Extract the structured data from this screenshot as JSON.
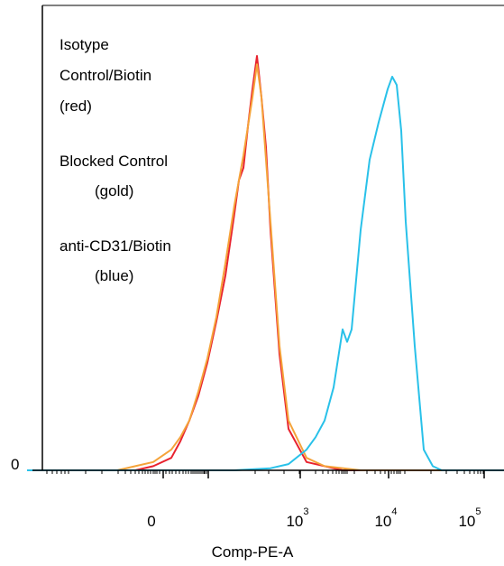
{
  "chart_data": {
    "type": "line",
    "chart_kind": "flow cytometry histogram overlay",
    "xlabel": "Comp-PE-A",
    "ylabel": "",
    "x_scale": "biexponential (logicle)",
    "x_tick_labels": [
      {
        "base": "0",
        "exp": ""
      },
      {
        "base": "10",
        "exp": "3"
      },
      {
        "base": "10",
        "exp": "4"
      },
      {
        "base": "10",
        "exp": "5"
      }
    ],
    "y_tick_labels": [
      "0"
    ],
    "ylim": [
      0,
      1
    ],
    "grid": false,
    "legend_placement": "top-left",
    "legend": [
      {
        "lines": [
          "Isotype",
          "Control/Biotin",
          "(red)"
        ]
      },
      {
        "lines": [
          "Blocked Control",
          "(gold)"
        ]
      },
      {
        "lines": [
          "anti-CD31/Biotin",
          "(blue)"
        ]
      }
    ],
    "series": [
      {
        "color": "#e8232f",
        "x": [
          30,
          70,
          110,
          150,
          170,
          190,
          200,
          210,
          220,
          230,
          240,
          250,
          260,
          265,
          270,
          275,
          280,
          285,
          290,
          295,
          300,
          310,
          320,
          340,
          380,
          560
        ],
        "y": [
          0,
          0,
          0,
          0,
          0.01,
          0.03,
          0.07,
          0.12,
          0.18,
          0.26,
          0.36,
          0.47,
          0.62,
          0.7,
          0.73,
          0.83,
          0.92,
          1.0,
          0.9,
          0.78,
          0.58,
          0.28,
          0.1,
          0.02,
          0.0,
          0
        ]
      },
      {
        "color": "#f5a33a",
        "x": [
          30,
          70,
          110,
          130,
          150,
          170,
          190,
          200,
          210,
          220,
          230,
          240,
          250,
          260,
          270,
          280,
          285,
          290,
          300,
          310,
          320,
          340,
          360,
          400,
          560
        ],
        "y": [
          0,
          0,
          0,
          0.0,
          0.01,
          0.02,
          0.05,
          0.08,
          0.12,
          0.19,
          0.27,
          0.37,
          0.5,
          0.64,
          0.76,
          0.9,
          0.98,
          0.9,
          0.6,
          0.3,
          0.12,
          0.03,
          0.01,
          0.0,
          0
        ]
      },
      {
        "color": "#29c1e9",
        "x": [
          30,
          100,
          200,
          260,
          300,
          320,
          340,
          350,
          360,
          370,
          375,
          380,
          385,
          390,
          395,
          400,
          410,
          420,
          430,
          435,
          440,
          445,
          450,
          460,
          470,
          480,
          490,
          520,
          560
        ],
        "y": [
          0,
          0,
          0,
          0,
          0.005,
          0.015,
          0.05,
          0.08,
          0.12,
          0.2,
          0.27,
          0.34,
          0.31,
          0.34,
          0.46,
          0.58,
          0.75,
          0.84,
          0.92,
          0.95,
          0.93,
          0.82,
          0.6,
          0.3,
          0.05,
          0.01,
          0.0,
          0,
          0
        ]
      }
    ]
  }
}
